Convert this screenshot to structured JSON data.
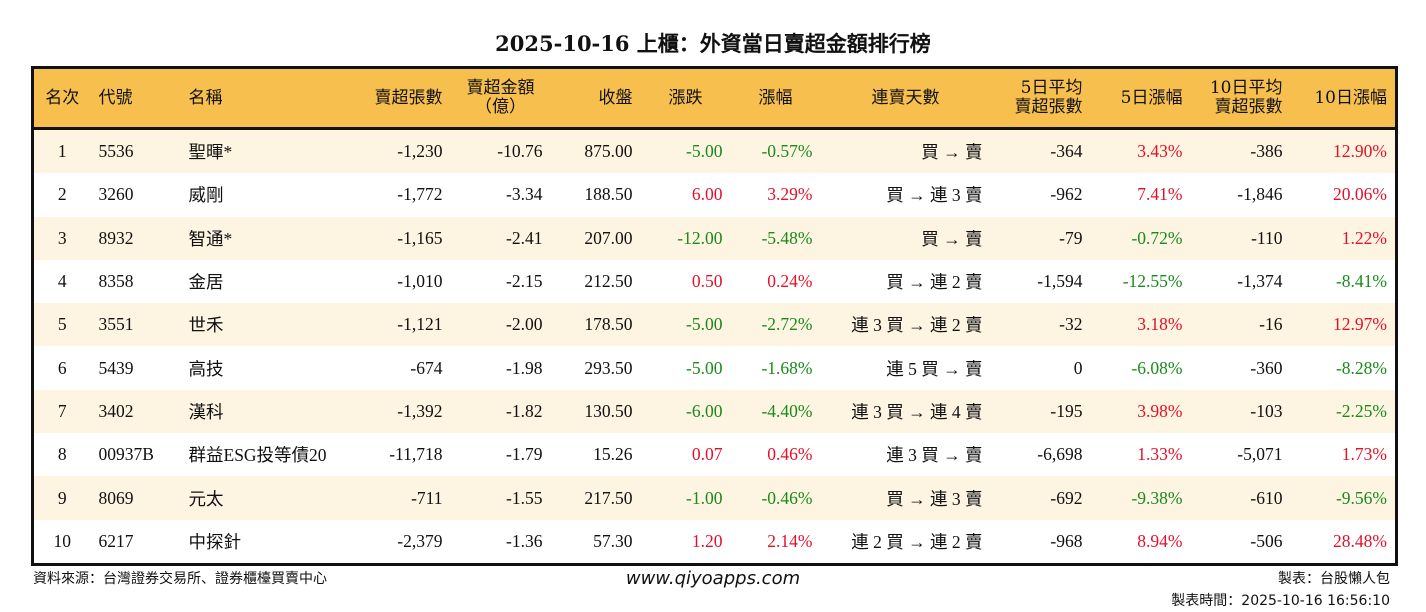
{
  "title": "2025-10-16 上櫃：外資當日賣超金額排行榜",
  "colors": {
    "header": "#f6bf4e",
    "stripe": "#fdf4e2",
    "up": "#e3102a",
    "down": "#1a8a1a"
  },
  "headers": [
    "名次",
    "代號",
    "名稱",
    "賣超張數",
    "賣超金額\n（億）",
    "收盤",
    "漲跌",
    "漲幅",
    "連賣天數",
    "5日平均\n賣超張數",
    "5日漲幅",
    "10日平均\n賣超張數",
    "10日漲幅"
  ],
  "rows": [
    [
      "1",
      "5536",
      "聖暉*",
      "-1,230",
      "-10.76",
      "875.00",
      "-5.00",
      "-0.57%",
      "買 → 賣",
      "-364",
      "3.43%",
      "-386",
      "12.90%"
    ],
    [
      "2",
      "3260",
      "威剛",
      "-1,772",
      "-3.34",
      "188.50",
      "6.00",
      "3.29%",
      "買 → 連 3 賣",
      "-962",
      "7.41%",
      "-1,846",
      "20.06%"
    ],
    [
      "3",
      "8932",
      "智通*",
      "-1,165",
      "-2.41",
      "207.00",
      "-12.00",
      "-5.48%",
      "買 → 賣",
      "-79",
      "-0.72%",
      "-110",
      "1.22%"
    ],
    [
      "4",
      "8358",
      "金居",
      "-1,010",
      "-2.15",
      "212.50",
      "0.50",
      "0.24%",
      "買 → 連 2 賣",
      "-1,594",
      "-12.55%",
      "-1,374",
      "-8.41%"
    ],
    [
      "5",
      "3551",
      "世禾",
      "-1,121",
      "-2.00",
      "178.50",
      "-5.00",
      "-2.72%",
      "連 3 買 → 連 2 賣",
      "-32",
      "3.18%",
      "-16",
      "12.97%"
    ],
    [
      "6",
      "5439",
      "高技",
      "-674",
      "-1.98",
      "293.50",
      "-5.00",
      "-1.68%",
      "連 5 買 → 賣",
      "0",
      "-6.08%",
      "-360",
      "-8.28%"
    ],
    [
      "7",
      "3402",
      "漢科",
      "-1,392",
      "-1.82",
      "130.50",
      "-6.00",
      "-4.40%",
      "連 3 買 → 連 4 賣",
      "-195",
      "3.98%",
      "-103",
      "-2.25%"
    ],
    [
      "8",
      "00937B",
      "群益ESG投等債20",
      "-11,718",
      "-1.79",
      "15.26",
      "0.07",
      "0.46%",
      "連 3 買 → 賣",
      "-6,698",
      "1.33%",
      "-5,071",
      "1.73%"
    ],
    [
      "9",
      "8069",
      "元太",
      "-711",
      "-1.55",
      "217.50",
      "-1.00",
      "-0.46%",
      "買 → 連 3 賣",
      "-692",
      "-9.38%",
      "-610",
      "-9.56%"
    ],
    [
      "10",
      "6217",
      "中探針",
      "-2,379",
      "-1.36",
      "57.30",
      "1.20",
      "2.14%",
      "連 2 買 → 連 2 賣",
      "-968",
      "8.94%",
      "-506",
      "28.48%"
    ]
  ],
  "footer": {
    "source": "資料來源：台灣證券交易所、證券櫃檯買賣中心",
    "website": "www.qiyoapps.com",
    "maker": "製表：台股懶人包",
    "time": "製表時間：2025-10-16 16:56:10"
  }
}
